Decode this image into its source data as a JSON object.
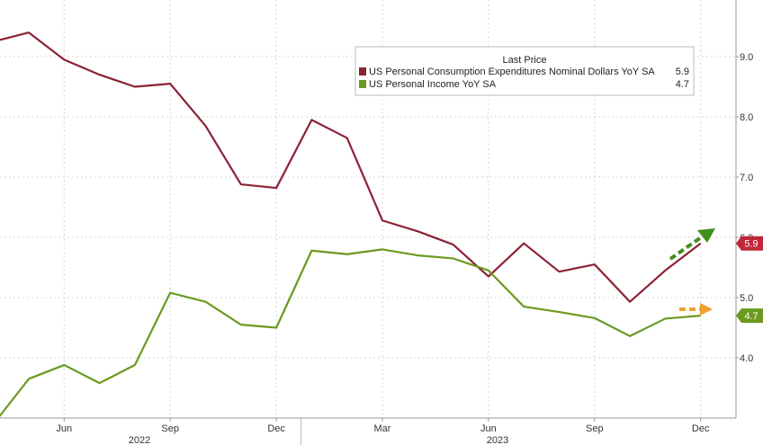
{
  "chart_data": {
    "type": "line",
    "x": [
      "2022-04",
      "2022-05",
      "2022-06",
      "2022-07",
      "2022-08",
      "2022-09",
      "2022-10",
      "2022-11",
      "2022-12",
      "2023-01",
      "2023-02",
      "2023-03",
      "2023-04",
      "2023-05",
      "2023-06",
      "2023-07",
      "2023-08",
      "2023-09",
      "2023-10",
      "2023-11",
      "2023-12"
    ],
    "x_tick_labels": [
      "Jun",
      "Sep",
      "Dec",
      "Mar",
      "Jun",
      "Sep",
      "Dec"
    ],
    "x_year_labels": [
      "2022",
      "2023"
    ],
    "y_ticks": [
      "4.0",
      "5.0",
      "6.0",
      "7.0",
      "8.0",
      "9.0"
    ],
    "ylim": [
      3.0,
      10.0
    ],
    "grid": true,
    "grid_style": "dashed",
    "legend": {
      "title": "Last Price",
      "placement": "top-right"
    },
    "series": [
      {
        "name": "US Personal Consumption Expenditures Nominal Dollars YoY SA",
        "last_price": "5.9",
        "color": "#8b2335",
        "badge_color": "#c0283a",
        "values": [
          9.25,
          9.4,
          8.95,
          8.7,
          8.5,
          8.55,
          7.85,
          6.88,
          6.82,
          7.95,
          7.65,
          6.28,
          6.1,
          5.88,
          5.35,
          5.9,
          5.43,
          5.55,
          4.93,
          5.45,
          5.9
        ]
      },
      {
        "name": "US Personal Income YoY SA",
        "last_price": "4.7",
        "color": "#6b9a1f",
        "badge_color": "#6b9a1f",
        "values": [
          2.9,
          3.65,
          3.88,
          3.58,
          3.88,
          5.08,
          4.93,
          4.55,
          4.5,
          5.78,
          5.72,
          5.8,
          5.7,
          5.65,
          5.45,
          4.85,
          4.76,
          4.66,
          4.36,
          4.65,
          4.7
        ]
      }
    ],
    "annotations": [
      {
        "name": "green-dashed-arrow",
        "color": "#3f8f1f",
        "meaning": "upward"
      },
      {
        "name": "orange-dashed-arrow",
        "color": "#f0a030",
        "meaning": "flat"
      }
    ]
  }
}
